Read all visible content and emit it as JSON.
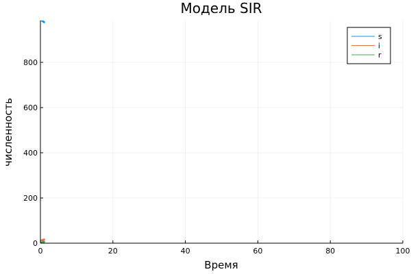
{
  "chart_data": {
    "type": "line",
    "title": "Модель SIR",
    "xlabel": "Время",
    "ylabel": "численность",
    "xlim": [
      0,
      100
    ],
    "ylim": [
      0,
      985
    ],
    "xticks": [
      0,
      20,
      40,
      60,
      80,
      100
    ],
    "yticks": [
      0,
      200,
      400,
      600,
      800
    ],
    "grid": true,
    "legend_position": "top-right",
    "series": [
      {
        "name": "s",
        "color": "#009af9",
        "x": [
          0,
          0.25,
          0.5,
          0.75,
          1.0
        ],
        "y": [
          990,
          987,
          984,
          981,
          978
        ]
      },
      {
        "name": "i",
        "color": "#e26f46",
        "x": [
          0,
          0.25,
          0.5,
          0.75,
          1.0
        ],
        "y": [
          10,
          11.5,
          13,
          14.5,
          16
        ]
      },
      {
        "name": "r",
        "color": "#3da44d",
        "x": [
          0,
          0.25,
          0.5,
          0.75,
          1.0
        ],
        "y": [
          0,
          1.5,
          3,
          4.5,
          6
        ]
      }
    ]
  }
}
